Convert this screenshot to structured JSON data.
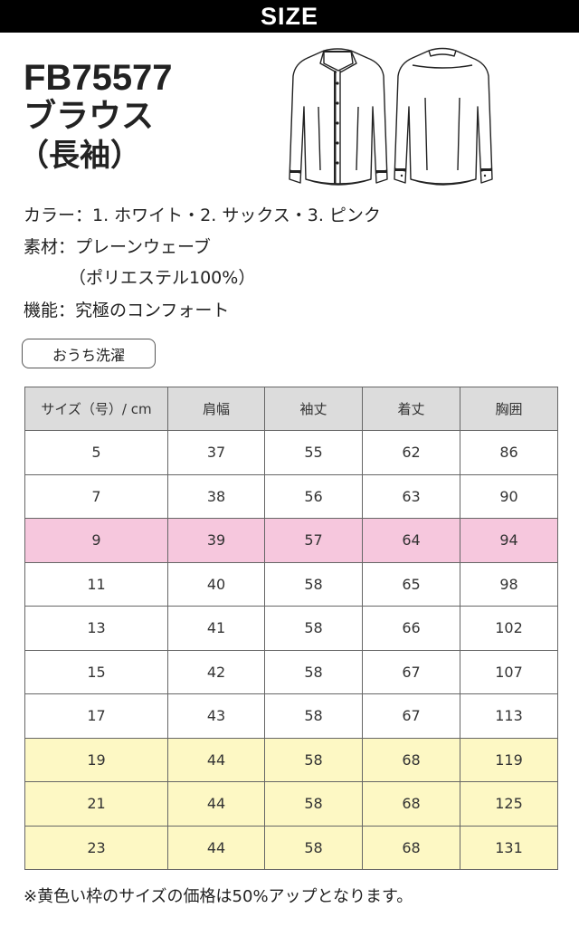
{
  "header": {
    "title": "SIZE"
  },
  "product": {
    "code": "FB75577",
    "name": "ブラウス",
    "sub": "（長袖）"
  },
  "specs": {
    "color": "カラー：1. ホワイト・2. サックス・3. ピンク",
    "material": "素材：プレーンウェーブ",
    "material_detail": "（ポリエステル100%）",
    "function": "機能：究極のコンフォート"
  },
  "care_badge": "おうち洗濯",
  "table": {
    "headers": [
      "サイズ（号）/ cm",
      "肩幅",
      "袖丈",
      "着丈",
      "胸囲"
    ],
    "rows": [
      {
        "cells": [
          "5",
          "37",
          "55",
          "62",
          "86"
        ],
        "highlight": ""
      },
      {
        "cells": [
          "7",
          "38",
          "56",
          "63",
          "90"
        ],
        "highlight": ""
      },
      {
        "cells": [
          "9",
          "39",
          "57",
          "64",
          "94"
        ],
        "highlight": "pink"
      },
      {
        "cells": [
          "11",
          "40",
          "58",
          "65",
          "98"
        ],
        "highlight": ""
      },
      {
        "cells": [
          "13",
          "41",
          "58",
          "66",
          "102"
        ],
        "highlight": ""
      },
      {
        "cells": [
          "15",
          "42",
          "58",
          "67",
          "107"
        ],
        "highlight": ""
      },
      {
        "cells": [
          "17",
          "43",
          "58",
          "67",
          "113"
        ],
        "highlight": ""
      },
      {
        "cells": [
          "19",
          "44",
          "58",
          "68",
          "119"
        ],
        "highlight": "yellow"
      },
      {
        "cells": [
          "21",
          "44",
          "58",
          "68",
          "125"
        ],
        "highlight": "yellow"
      },
      {
        "cells": [
          "23",
          "44",
          "58",
          "68",
          "131"
        ],
        "highlight": "yellow"
      }
    ]
  },
  "footnote": "※黄色い枠のサイズの価格は50%アップとなります。",
  "colors": {
    "pink_row": "#f6c7dd",
    "yellow_row": "#fdf8c4",
    "header_bar": "#000000",
    "table_header": "#dcdcdc"
  },
  "icons": {
    "front": "blouse-front-illustration",
    "back": "blouse-back-illustration"
  }
}
